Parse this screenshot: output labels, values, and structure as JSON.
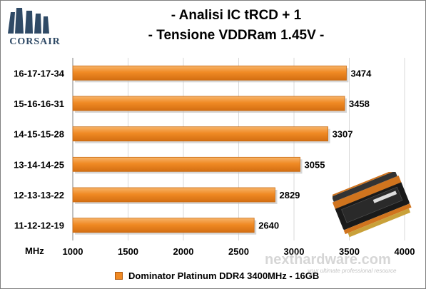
{
  "brand": {
    "logo_text": "CORSAIR"
  },
  "watermark": {
    "main": "nexthardware.com",
    "tagline": "your ultimate professional resource"
  },
  "chart_data": {
    "type": "bar",
    "orientation": "horizontal",
    "title": [
      "- Analisi IC  tRCD + 1",
      "- Tensione VDDRam 1.45V -"
    ],
    "xlabel": "MHz",
    "ylabel": "",
    "categories": [
      "16-17-17-34",
      "15-16-16-31",
      "14-15-15-28",
      "13-14-14-25",
      "12-13-13-22",
      "11-12-12-19"
    ],
    "series": [
      {
        "name": "Dominator Platinum DDR4  3400MHz - 16GB",
        "values": [
          3474,
          3458,
          3307,
          3055,
          2829,
          2640
        ],
        "color": "#f08a24"
      }
    ],
    "xlim": [
      1000,
      4000
    ],
    "xticks": [
      1000,
      1500,
      2000,
      2500,
      3000,
      3500,
      4000
    ],
    "grid": true,
    "legend": "bottom"
  },
  "colors": {
    "bar_fill": "#f08a24",
    "bar_edge": "#c86a12",
    "grid": "#d9d9d9",
    "title_accent": "#000000"
  }
}
